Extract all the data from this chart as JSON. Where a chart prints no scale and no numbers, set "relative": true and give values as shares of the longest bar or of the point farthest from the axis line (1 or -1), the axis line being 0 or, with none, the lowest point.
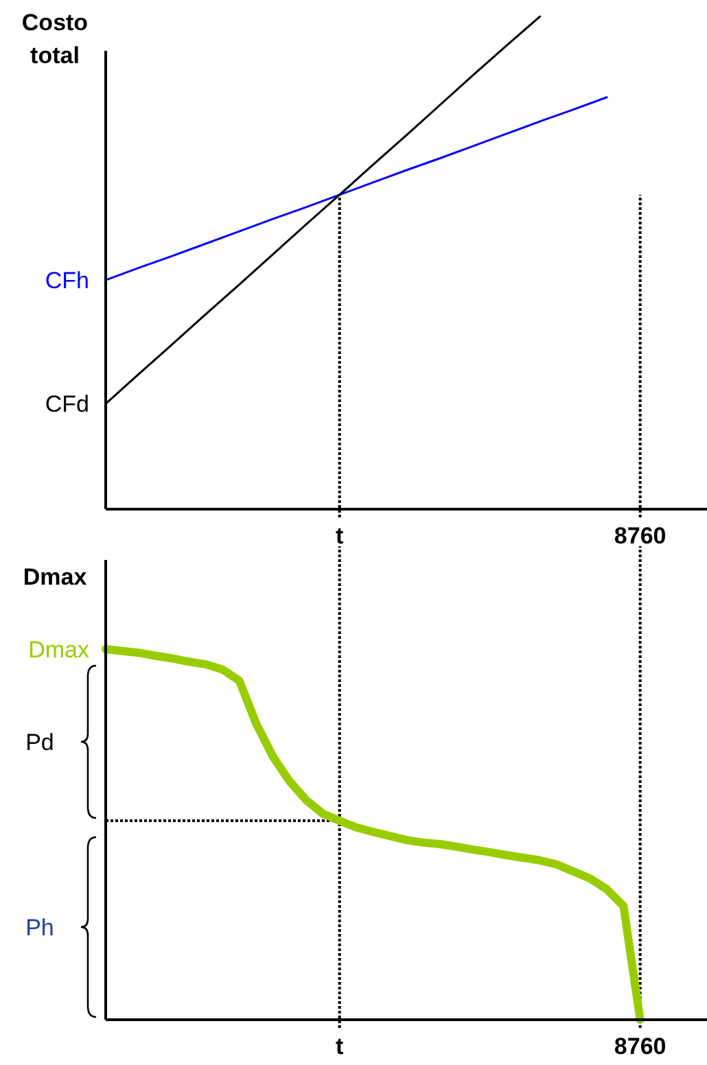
{
  "chart_data": [
    {
      "type": "line",
      "ylabel": "Costo total",
      "relative": true,
      "line_style": "solid",
      "categories": [
        null,
        null,
        null,
        null,
        null,
        null,
        null,
        "t",
        null,
        null,
        null,
        null,
        null,
        null,
        null,
        null,
        "8760",
        null,
        null
      ],
      "series": [
        {
          "color": "#0000ff",
          "values": [
            0.465,
            0.49,
            0.514,
            0.539,
            0.564,
            0.589,
            0.613,
            0.638,
            0.663,
            0.688,
            0.712,
            0.737,
            0.762,
            0.787,
            0.811,
            0.836,
            null,
            null,
            null
          ]
        },
        {
          "color": "#000000",
          "values": [
            0.214,
            0.275,
            0.335,
            0.396,
            0.456,
            0.517,
            0.578,
            0.638,
            0.699,
            0.759,
            0.82,
            0.881,
            0.941,
            1,
            null,
            null,
            null,
            null,
            null
          ]
        }
      ],
      "annotations": [
        "CFh",
        "CFd"
      ],
      "ref_lines": [
        {
          "axis": "x",
          "value": "t",
          "label": null,
          "line_style": "dotted"
        },
        {
          "axis": "x",
          "value": "8760",
          "label": null,
          "line_style": "dotted"
        }
      ]
    },
    {
      "type": "line",
      "ylabel": "Dmax",
      "relative": true,
      "line_style": "solid",
      "categories": [
        null,
        null,
        null,
        null,
        null,
        null,
        null,
        null,
        null,
        null,
        null,
        null,
        null,
        null,
        "t",
        null,
        null,
        null,
        null,
        null,
        null,
        null,
        null,
        null,
        null,
        null,
        null,
        null,
        null,
        null,
        null,
        null,
        "8760",
        null,
        null,
        null,
        null
      ],
      "series": [
        {
          "color": "#99cc00",
          "values": [
            1,
            0.995,
            0.99,
            0.982,
            0.975,
            0.966,
            0.959,
            0.945,
            0.915,
            0.8,
            0.711,
            0.644,
            0.593,
            0.556,
            0.537,
            0.519,
            0.507,
            0.496,
            0.485,
            0.478,
            0.474,
            0.467,
            0.459,
            0.452,
            0.444,
            0.437,
            0.43,
            0.419,
            0.4,
            0.381,
            0.352,
            0.307,
            0,
            null,
            null,
            null,
            null
          ]
        }
      ],
      "annotations": [
        "Dmax",
        "Pd",
        "Ph"
      ],
      "ref_lines": [
        {
          "axis": "y",
          "value": 0.537,
          "label": null,
          "line_style": "dotted"
        },
        {
          "axis": "x",
          "value": "t",
          "label": null,
          "line_style": "dotted"
        },
        {
          "axis": "x",
          "value": "8760",
          "label": null,
          "line_style": "dotted"
        }
      ]
    }
  ]
}
